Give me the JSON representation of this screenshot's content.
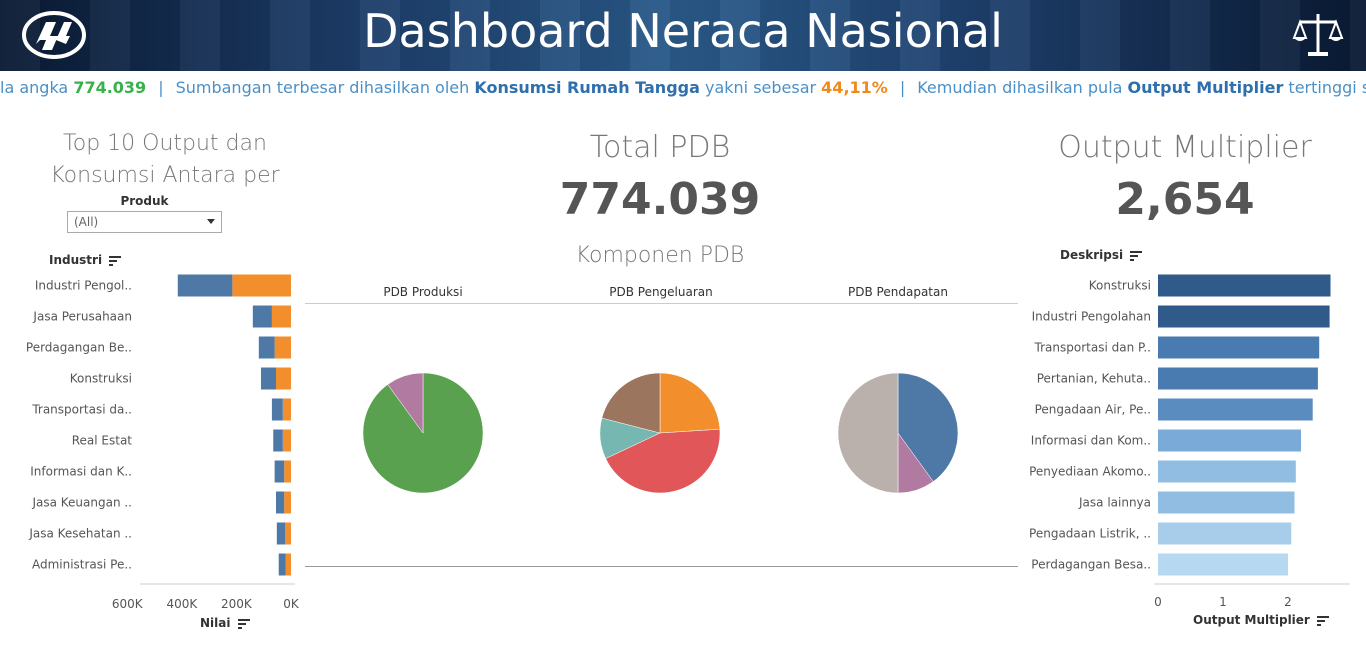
{
  "header": {
    "title": "Dashboard Neraca Nasional"
  },
  "ticker": {
    "seg1_pre": "la angka ",
    "seg1_val": "774.039",
    "sep": "|",
    "seg2_pre": "Sumbangan terbesar dihasilkan oleh ",
    "seg2_bold": "Konsumsi Rumah Tangga",
    "seg2_mid": " yakni sebesar ",
    "seg2_val": "44,11%",
    "seg3_pre": "Kemudian dihasilkan pula ",
    "seg3_bold": "Output Multiplier",
    "seg3_post": " tertinggi sebes"
  },
  "left_panel": {
    "title_line1": "Top 10 Output dan",
    "title_line2": "Konsumsi Antara per",
    "filter_label": "Produk",
    "filter_value": "(All)",
    "row_header": "Industri",
    "axis_label": "Nilai"
  },
  "center_panel": {
    "total_label": "Total PDB",
    "total_value": "774.039",
    "components_title": "Komponen PDB",
    "pie_titles": [
      "PDB Produksi",
      "PDB Pengeluaran",
      "PDB Pendapatan"
    ]
  },
  "right_panel": {
    "title": "Output Multiplier",
    "value": "2,654",
    "row_header": "Deskripsi",
    "axis_label": "Output Multiplier"
  },
  "colors": {
    "blue": "#4e79a7",
    "orange": "#f28e2b",
    "green": "#59a14f",
    "red": "#e15759",
    "teal": "#76b7b2",
    "brown": "#9c755f",
    "pink": "#b07aa1",
    "grey": "#bab0ac"
  },
  "chart_data": [
    {
      "type": "bar",
      "orientation": "horizontal-stacked",
      "categories": [
        "Industri Pengol..",
        "Jasa Perusahaan",
        "Perdagangan Be..",
        "Konstruksi",
        "Transportasi da..",
        "Real Estat",
        "Informasi dan K..",
        "Jasa Keuangan ..",
        "Jasa Kesehatan ..",
        "Administrasi Pe.."
      ],
      "series": [
        {
          "values": [
            215000,
            70000,
            60000,
            55000,
            30000,
            30000,
            25000,
            25000,
            22000,
            20000
          ],
          "color": "#f28e2b"
        },
        {
          "values": [
            200000,
            70000,
            58000,
            55000,
            40000,
            35000,
            35000,
            30000,
            30000,
            25000
          ],
          "color": "#4e79a7"
        }
      ],
      "xlim": [
        700000,
        0
      ],
      "ticks": [
        "600K",
        "400K",
        "200K",
        "0K"
      ],
      "xlabel": "Nilai"
    },
    {
      "type": "pie",
      "title": "PDB Produksi",
      "slices": [
        {
          "value": 90,
          "color": "#59a14f"
        },
        {
          "value": 10,
          "color": "#b07aa1"
        }
      ]
    },
    {
      "type": "pie",
      "title": "PDB Pengeluaran",
      "slices": [
        {
          "value": 24,
          "color": "#f28e2b"
        },
        {
          "value": 44,
          "color": "#e15759"
        },
        {
          "value": 11,
          "color": "#76b7b2"
        },
        {
          "value": 21,
          "color": "#9c755f"
        }
      ]
    },
    {
      "type": "pie",
      "title": "PDB Pendapatan",
      "slices": [
        {
          "value": 40,
          "color": "#4e79a7"
        },
        {
          "value": 10,
          "color": "#b07aa1"
        },
        {
          "value": 50,
          "color": "#bab0ac"
        }
      ]
    },
    {
      "type": "bar",
      "orientation": "horizontal",
      "categories": [
        "Konstruksi",
        "Industri Pengolahan",
        "Transportasi dan P..",
        "Pertanian, Kehuta..",
        "Pengadaan Air, Pe..",
        "Informasi dan Kom..",
        "Penyediaan Akomo..",
        "Jasa lainnya",
        "Pengadaan Listrik, ..",
        "Perdagangan Besa.."
      ],
      "values": [
        2.654,
        2.64,
        2.48,
        2.46,
        2.38,
        2.2,
        2.12,
        2.1,
        2.05,
        2.0
      ],
      "colors": [
        "#2f5a8a",
        "#2f5a8a",
        "#4a7bb0",
        "#4a7bb0",
        "#5a8cc0",
        "#7aaad8",
        "#92bde3",
        "#92bde3",
        "#a8cdeb",
        "#b6d8f1"
      ],
      "xlim": [
        0,
        2.8
      ],
      "ticks": [
        "0",
        "1",
        "2"
      ],
      "xlabel": "Output Multiplier"
    }
  ]
}
